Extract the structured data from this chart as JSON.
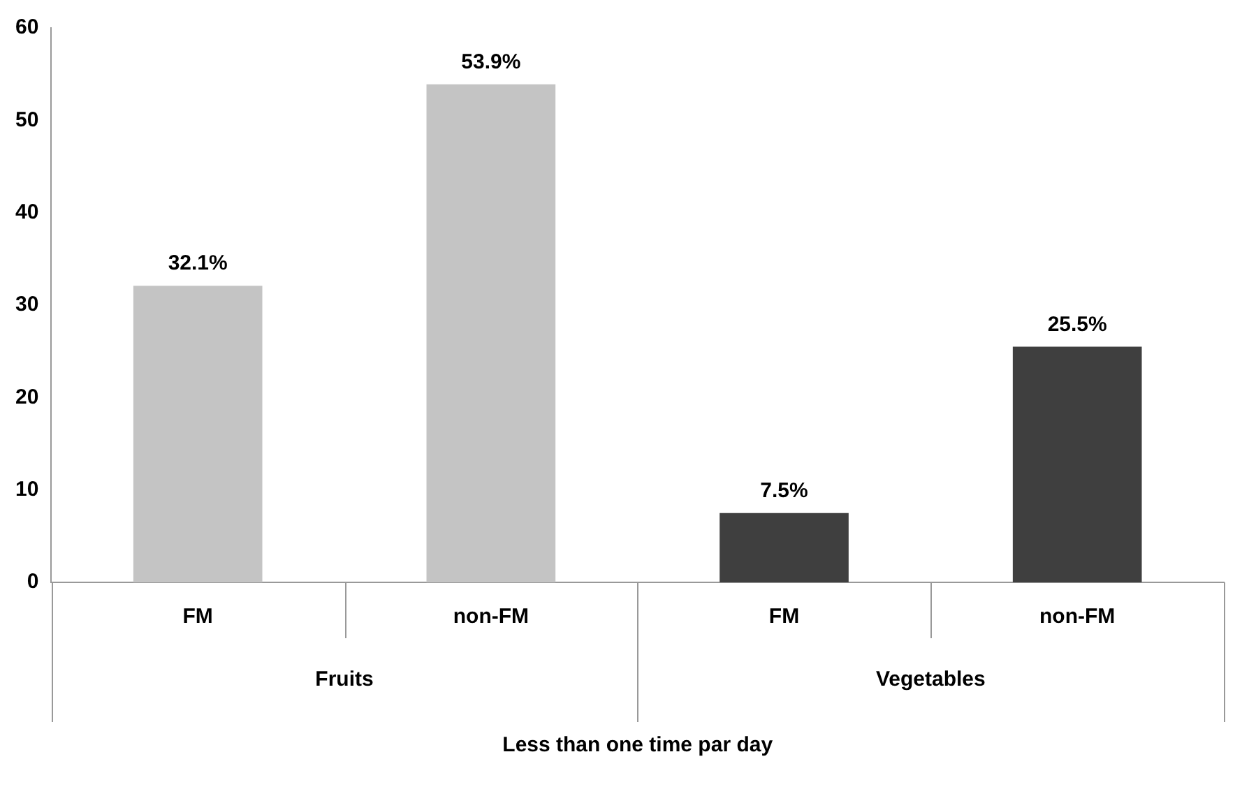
{
  "chart_data": {
    "type": "bar",
    "categories": [
      "FM",
      "non-FM",
      "FM",
      "non-FM"
    ],
    "values": [
      32.1,
      53.9,
      7.5,
      25.5
    ],
    "colors": [
      "#c4c4c4",
      "#c4c4c4",
      "#3f3f3f",
      "#3f3f3f"
    ],
    "value_labels": [
      "32.1%",
      "53.9%",
      "7.5%",
      "25.5%"
    ],
    "annotations": [
      "Fruits",
      "Vegetables"
    ],
    "xlabel": "Less than one time par day",
    "ylim": [
      0,
      60
    ],
    "yticks": [
      0,
      10,
      20,
      30,
      40,
      50,
      60
    ],
    "grid": false,
    "legend": false
  }
}
